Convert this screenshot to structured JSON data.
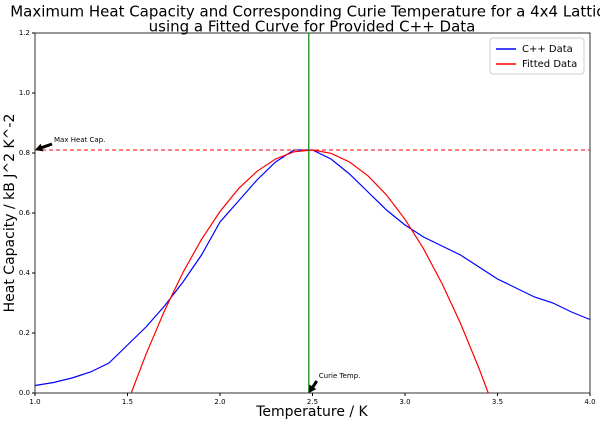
{
  "chart_data": {
    "type": "line",
    "title": [
      "Maximum Heat Capacity and Corresponding Curie Temperature for a 4x4 Lattice",
      "using a Fitted Curve for Provided C++ Data"
    ],
    "xlabel": "Temperature / K",
    "ylabel": "Heat Capacity / kB J^2 K^-2",
    "xlim": [
      1.0,
      4.0
    ],
    "ylim": [
      0.0,
      1.2
    ],
    "xticks": [
      {
        "value": 1,
        "label": "1.0"
      },
      {
        "value": 1.5,
        "label": "1.5"
      },
      {
        "value": 2,
        "label": "2.0"
      },
      {
        "value": 2.5,
        "label": "2.5"
      },
      {
        "value": 3,
        "label": "3.0"
      },
      {
        "value": 3.5,
        "label": "3.5"
      },
      {
        "value": 4,
        "label": "4.0"
      }
    ],
    "yticks": [
      {
        "value": 0,
        "label": "0.0"
      },
      0.2,
      0.4,
      0.6,
      0.8,
      {
        "value": 1,
        "label": "1.0"
      },
      1.2
    ],
    "legend": "upper right",
    "series": [
      {
        "name": "C++ Data",
        "color": "#0000ff",
        "x": [
          1.0,
          1.1,
          1.2,
          1.3,
          1.4,
          1.5,
          1.6,
          1.7,
          1.8,
          1.9,
          2.0,
          2.1,
          2.2,
          2.3,
          2.4,
          2.5,
          2.6,
          2.7,
          2.8,
          2.9,
          3.0,
          3.1,
          3.2,
          3.3,
          3.4,
          3.5,
          3.6,
          3.7,
          3.8,
          3.9,
          4.0
        ],
        "values": [
          0.025,
          0.035,
          0.05,
          0.07,
          0.1,
          0.16,
          0.22,
          0.29,
          0.37,
          0.46,
          0.57,
          0.64,
          0.71,
          0.77,
          0.81,
          0.81,
          0.78,
          0.73,
          0.67,
          0.61,
          0.56,
          0.52,
          0.49,
          0.46,
          0.42,
          0.38,
          0.35,
          0.32,
          0.3,
          0.27,
          0.245
        ]
      },
      {
        "name": "Fitted Data",
        "color": "#ff0000",
        "x": [
          1.52,
          1.6,
          1.7,
          1.8,
          1.9,
          2.0,
          2.1,
          2.2,
          2.3,
          2.4,
          2.5,
          2.6,
          2.7,
          2.8,
          2.9,
          3.0,
          3.1,
          3.2,
          3.3,
          3.4,
          3.45
        ],
        "values": [
          0.0,
          0.129,
          0.274,
          0.402,
          0.512,
          0.605,
          0.681,
          0.739,
          0.78,
          0.804,
          0.81,
          0.799,
          0.77,
          0.724,
          0.66,
          0.579,
          0.481,
          0.365,
          0.232,
          0.082,
          0.0
        ]
      }
    ],
    "max_heat_capacity": {
      "value": 0.81,
      "color": "#ff0000",
      "label": "Max Heat Cap."
    },
    "curie_temperature": {
      "value": 2.48,
      "color": "#008000",
      "label": "Curie Temp."
    }
  }
}
